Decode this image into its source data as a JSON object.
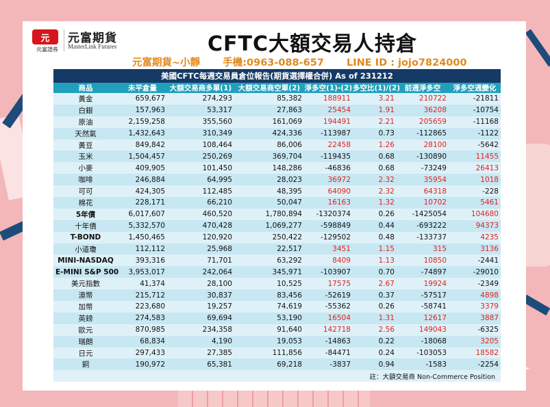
{
  "header": {
    "logo_badge": "元",
    "logo_sub": "元富證券",
    "logo_cn": "元富期貨",
    "logo_en": "MasterLink Futures",
    "title": "CFTC大額交易人持倉",
    "contact_name": "元富期貨~小靜",
    "contact_phone": "手機:0963-088-657",
    "contact_line": "LINE ID : jojo7824000"
  },
  "table": {
    "report_title": "美國CFTC每週交易員倉位報告(期貨選擇權合併) As of  231212",
    "columns": [
      "商品",
      "未平倉量",
      "大額交易商多單(1)",
      "大額交易商空單(2)",
      "淨多空(1)-(2)",
      "多空比(1)/(2)",
      "前週淨多空",
      "淨多空週變化"
    ],
    "rows": [
      {
        "name": "黃金",
        "bold": false,
        "oi": "659,677",
        "long": "274,293",
        "short": "85,382",
        "net": "188911",
        "ratio": "3.21",
        "prev": "210722",
        "chg": "-21811"
      },
      {
        "name": "白銀",
        "bold": false,
        "oi": "157,963",
        "long": "53,317",
        "short": "27,863",
        "net": "25454",
        "ratio": "1.91",
        "prev": "36208",
        "chg": "-10754"
      },
      {
        "name": "原油",
        "bold": false,
        "oi": "2,159,258",
        "long": "355,560",
        "short": "161,069",
        "net": "194491",
        "ratio": "2.21",
        "prev": "205659",
        "chg": "-11168"
      },
      {
        "name": "天然氣",
        "bold": false,
        "oi": "1,432,643",
        "long": "310,349",
        "short": "424,336",
        "net": "-113987",
        "ratio": "0.73",
        "prev": "-112865",
        "chg": "-1122"
      },
      {
        "name": "黃豆",
        "bold": false,
        "oi": "849,842",
        "long": "108,464",
        "short": "86,006",
        "net": "22458",
        "ratio": "1.26",
        "prev": "28100",
        "chg": "-5642"
      },
      {
        "name": "玉米",
        "bold": false,
        "oi": "1,504,457",
        "long": "250,269",
        "short": "369,704",
        "net": "-119435",
        "ratio": "0.68",
        "prev": "-130890",
        "chg": "11455"
      },
      {
        "name": "小麥",
        "bold": false,
        "oi": "409,905",
        "long": "101,450",
        "short": "148,286",
        "net": "-46836",
        "ratio": "0.68",
        "prev": "-73249",
        "chg": "26413"
      },
      {
        "name": "咖啡",
        "bold": false,
        "oi": "246,884",
        "long": "64,995",
        "short": "28,023",
        "net": "36972",
        "ratio": "2.32",
        "prev": "35954",
        "chg": "1018"
      },
      {
        "name": "可可",
        "bold": false,
        "oi": "424,305",
        "long": "112,485",
        "short": "48,395",
        "net": "64090",
        "ratio": "2.32",
        "prev": "64318",
        "chg": "-228"
      },
      {
        "name": "棉花",
        "bold": false,
        "oi": "228,171",
        "long": "66,210",
        "short": "50,047",
        "net": "16163",
        "ratio": "1.32",
        "prev": "10702",
        "chg": "5461"
      },
      {
        "name": "5年債",
        "bold": true,
        "oi": "6,017,607",
        "long": "460,520",
        "short": "1,780,894",
        "net": "-1320374",
        "ratio": "0.26",
        "prev": "-1425054",
        "chg": "104680"
      },
      {
        "name": "十年債",
        "bold": false,
        "oi": "5,332,570",
        "long": "470,428",
        "short": "1,069,277",
        "net": "-598849",
        "ratio": "0.44",
        "prev": "-693222",
        "chg": "94373"
      },
      {
        "name": "T-BOND",
        "bold": true,
        "oi": "1,450,465",
        "long": "120,920",
        "short": "250,422",
        "net": "-129502",
        "ratio": "0.48",
        "prev": "-133737",
        "chg": "4235"
      },
      {
        "name": "小道瓊",
        "bold": false,
        "oi": "112,112",
        "long": "25,968",
        "short": "22,517",
        "net": "3451",
        "ratio": "1.15",
        "prev": "315",
        "chg": "3136"
      },
      {
        "name": "MINI-NASDAQ",
        "bold": true,
        "oi": "393,316",
        "long": "71,701",
        "short": "63,292",
        "net": "8409",
        "ratio": "1.13",
        "prev": "10850",
        "chg": "-2441"
      },
      {
        "name": "E-MINI S&P 500",
        "bold": true,
        "oi": "3,953,017",
        "long": "242,064",
        "short": "345,971",
        "net": "-103907",
        "ratio": "0.70",
        "prev": "-74897",
        "chg": "-29010"
      },
      {
        "name": "美元指數",
        "bold": false,
        "oi": "41,374",
        "long": "28,100",
        "short": "10,525",
        "net": "17575",
        "ratio": "2.67",
        "prev": "19924",
        "chg": "-2349"
      },
      {
        "name": "澳幣",
        "bold": false,
        "oi": "215,712",
        "long": "30,837",
        "short": "83,456",
        "net": "-52619",
        "ratio": "0.37",
        "prev": "-57517",
        "chg": "4898"
      },
      {
        "name": "加幣",
        "bold": false,
        "oi": "223,680",
        "long": "19,257",
        "short": "74,619",
        "net": "-55362",
        "ratio": "0.26",
        "prev": "-58741",
        "chg": "3379"
      },
      {
        "name": "英鎊",
        "bold": false,
        "oi": "274,583",
        "long": "69,694",
        "short": "53,190",
        "net": "16504",
        "ratio": "1.31",
        "prev": "12617",
        "chg": "3887"
      },
      {
        "name": "歐元",
        "bold": false,
        "oi": "870,985",
        "long": "234,358",
        "short": "91,640",
        "net": "142718",
        "ratio": "2.56",
        "prev": "149043",
        "chg": "-6325"
      },
      {
        "name": "瑞朗",
        "bold": false,
        "oi": "68,834",
        "long": "4,190",
        "short": "19,053",
        "net": "-14863",
        "ratio": "0.22",
        "prev": "-18068",
        "chg": "3205"
      },
      {
        "name": "日元",
        "bold": false,
        "oi": "297,433",
        "long": "27,385",
        "short": "111,856",
        "net": "-84471",
        "ratio": "0.24",
        "prev": "-103053",
        "chg": "18582"
      },
      {
        "name": "銅",
        "bold": false,
        "oi": "190,972",
        "long": "65,381",
        "short": "69,218",
        "net": "-3837",
        "ratio": "0.94",
        "prev": "-1583",
        "chg": "-2254"
      }
    ],
    "note": "註：大額交易商 Non-Commerce Position"
  },
  "colors": {
    "positive": "#e0221e",
    "negative": "#111111",
    "header_bg": "#21a0bc",
    "report_bg": "#163a66",
    "contact": "#e08a1e"
  }
}
